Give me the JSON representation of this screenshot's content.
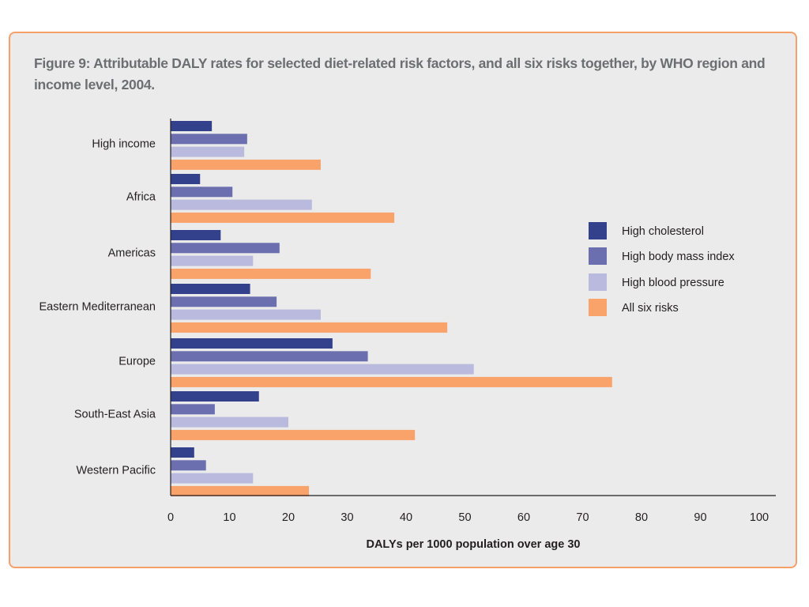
{
  "figure": {
    "title": "Figure 9: Attributable DALY rates for selected diet-related risk factors, and all six risks together, by WHO region and income level, 2004."
  },
  "chart_data": {
    "type": "bar",
    "orientation": "horizontal",
    "categories": [
      "High income",
      "Africa",
      "Americas",
      "Eastern Mediterranean",
      "Europe",
      "South-East Asia",
      "Western Pacific"
    ],
    "series": [
      {
        "name": "High cholesterol",
        "color": "#33418c",
        "values": [
          7,
          5,
          8.5,
          13.5,
          27.5,
          15,
          4
        ]
      },
      {
        "name": "High body mass index",
        "color": "#6b6fb0",
        "values": [
          13,
          10.5,
          18.5,
          18,
          33.5,
          7.5,
          6
        ]
      },
      {
        "name": "High blood pressure",
        "color": "#b9badd",
        "values": [
          12.5,
          24,
          14,
          25.5,
          51.5,
          20,
          14
        ]
      },
      {
        "name": "All six risks",
        "color": "#f9a26a",
        "values": [
          25.5,
          38,
          34,
          47,
          75,
          41.5,
          23.5
        ]
      }
    ],
    "xlim": [
      0,
      100
    ],
    "xticks": [
      0,
      10,
      20,
      30,
      40,
      50,
      60,
      70,
      80,
      90,
      100
    ],
    "xlabel": "DALYs per 1000 population over age 30",
    "ylabel": "",
    "grid": false,
    "legend_position": "right"
  }
}
